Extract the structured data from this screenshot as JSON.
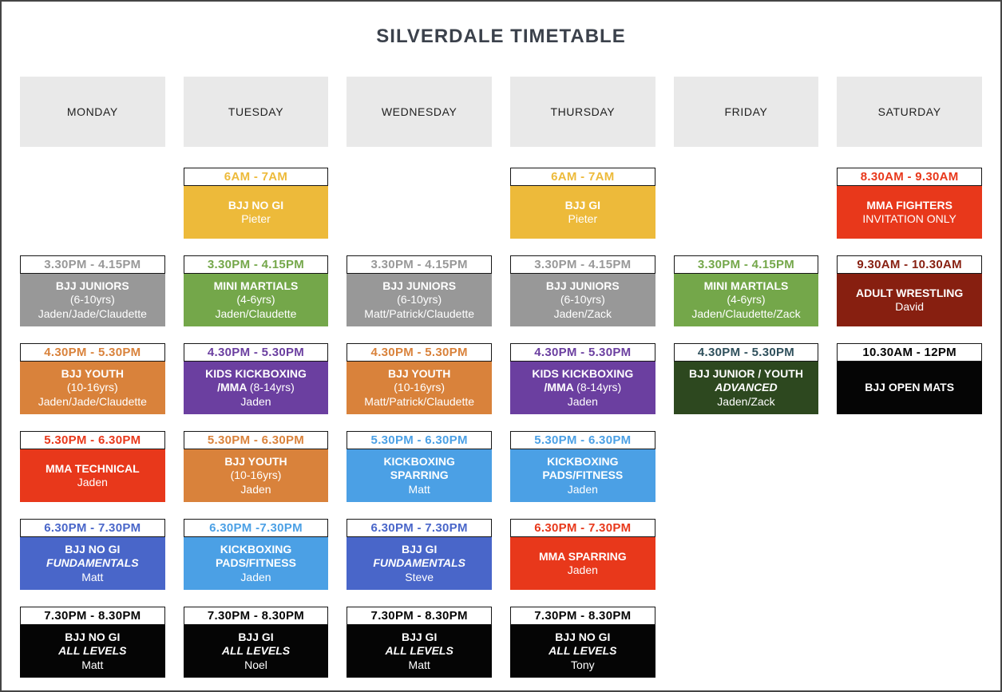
{
  "title": "SILVERDALE TIMETABLE",
  "days": [
    "MONDAY",
    "TUESDAY",
    "WEDNESDAY",
    "THURSDAY",
    "FRIDAY",
    "SATURDAY"
  ],
  "palette": {
    "yellow": "#EDBA3A",
    "gray": "#989898",
    "green": "#74A74A",
    "orange": "#D9823B",
    "purple": "#6B3FA0",
    "red": "#E8381B",
    "dark_red": "#871F10",
    "dark_green": "#2D481F",
    "royal_blue": "#4966C9",
    "light_blue": "#4BA0E5",
    "black": "#050505",
    "title_color": "#3B414B",
    "day_header_bg": "#E9E9E9",
    "time_border": "#161616",
    "page_border": "#454545"
  },
  "schedule": {
    "rows": [
      [
        null,
        {
          "time": "6AM - 7AM",
          "color": "yellow",
          "lines": [
            {
              "text": "BJJ NO GI",
              "bold": true
            },
            {
              "text": "Pieter"
            }
          ]
        },
        null,
        {
          "time": "6AM - 7AM",
          "color": "yellow",
          "lines": [
            {
              "text": "BJJ GI",
              "bold": true
            },
            {
              "text": "Pieter"
            }
          ]
        },
        null,
        {
          "time": "8.30AM - 9.30AM",
          "color": "red",
          "lines": [
            {
              "text": "MMA FIGHTERS",
              "bold": true
            },
            {
              "text": "INVITATION ONLY"
            }
          ]
        }
      ],
      [
        {
          "time": "3.30PM - 4.15PM",
          "color": "gray",
          "lines": [
            {
              "text": "BJJ JUNIORS",
              "bold": true
            },
            {
              "text": "(6-10yrs)"
            },
            {
              "text": "Jaden/Jade/Claudette"
            }
          ]
        },
        {
          "time": "3.30PM - 4.15PM",
          "color": "green",
          "lines": [
            {
              "text": "MINI MARTIALS",
              "bold": true
            },
            {
              "text": "(4-6yrs)"
            },
            {
              "text": "Jaden/Claudette"
            }
          ]
        },
        {
          "time": "3.30PM - 4.15PM",
          "color": "gray",
          "lines": [
            {
              "text": "BJJ JUNIORS",
              "bold": true
            },
            {
              "text": "(6-10yrs)"
            },
            {
              "text": "Matt/Patrick/Claudette"
            }
          ]
        },
        {
          "time": "3.30PM - 4.15PM",
          "color": "gray",
          "lines": [
            {
              "text": "BJJ JUNIORS",
              "bold": true
            },
            {
              "text": "(6-10yrs)"
            },
            {
              "text": "Jaden/Zack"
            }
          ]
        },
        {
          "time": "3.30PM - 4.15PM",
          "color": "green",
          "lines": [
            {
              "text": "MINI MARTIALS",
              "bold": true
            },
            {
              "text": "(4-6yrs)"
            },
            {
              "text": "Jaden/Claudette/Zack"
            }
          ]
        },
        {
          "time": "9.30AM - 10.30AM",
          "color": "dark_red",
          "lines": [
            {
              "text": "ADULT WRESTLING",
              "bold": true
            },
            {
              "text": "David"
            }
          ]
        }
      ],
      [
        {
          "time": "4.30PM - 5.30PM",
          "color": "orange",
          "lines": [
            {
              "text": "BJJ YOUTH",
              "bold": true
            },
            {
              "text": "(10-16yrs)"
            },
            {
              "text": "Jaden/Jade/Claudette"
            }
          ]
        },
        {
          "time": "4.30PM - 5.30PM",
          "color": "purple",
          "lines": [
            {
              "text": "KIDS KICKBOXING",
              "bold": true
            },
            {
              "parts": [
                {
                  "text": "/MMA ",
                  "bold": true
                },
                {
                  "text": "(8-14yrs)"
                }
              ]
            },
            {
              "text": "Jaden"
            }
          ]
        },
        {
          "time": "4.30PM - 5.30PM",
          "color": "orange",
          "lines": [
            {
              "text": "BJJ YOUTH",
              "bold": true
            },
            {
              "text": "(10-16yrs)"
            },
            {
              "text": "Matt/Patrick/Claudette"
            }
          ]
        },
        {
          "time": "4.30PM - 5.30PM",
          "color": "purple",
          "lines": [
            {
              "text": "KIDS KICKBOXING",
              "bold": true
            },
            {
              "parts": [
                {
                  "text": "/MMA ",
                  "bold": true
                },
                {
                  "text": "(8-14yrs)"
                }
              ]
            },
            {
              "text": "Jaden"
            }
          ]
        },
        {
          "time": "4.30PM - 5.30PM",
          "color": "dark_green",
          "time_color": "#2F505C",
          "lines": [
            {
              "text": "BJJ JUNIOR / YOUTH",
              "bold": true
            },
            {
              "text": "ADVANCED",
              "bold": true,
              "italic": true
            },
            {
              "text": "Jaden/Zack"
            }
          ]
        },
        {
          "time": "10.30AM - 12PM",
          "color": "black",
          "lines": [
            {
              "text": "BJJ OPEN MATS",
              "bold": true
            }
          ]
        }
      ],
      [
        {
          "time": "5.30PM - 6.30PM",
          "color": "red",
          "lines": [
            {
              "text": "MMA TECHNICAL",
              "bold": true
            },
            {
              "text": "Jaden"
            }
          ]
        },
        {
          "time": "5.30PM - 6.30PM",
          "color": "orange",
          "lines": [
            {
              "text": "BJJ YOUTH",
              "bold": true
            },
            {
              "text": "(10-16yrs)"
            },
            {
              "text": "Jaden"
            }
          ]
        },
        {
          "time": "5.30PM - 6.30PM",
          "color": "light_blue",
          "lines": [
            {
              "text": "KICKBOXING",
              "bold": true
            },
            {
              "text": "SPARRING",
              "bold": true
            },
            {
              "text": "Matt"
            }
          ]
        },
        {
          "time": "5.30PM - 6.30PM",
          "color": "light_blue",
          "lines": [
            {
              "text": "KICKBOXING",
              "bold": true
            },
            {
              "text": "PADS/FITNESS",
              "bold": true
            },
            {
              "text": "Jaden"
            }
          ]
        },
        null,
        null
      ],
      [
        {
          "time": "6.30PM - 7.30PM",
          "color": "royal_blue",
          "lines": [
            {
              "text": "BJJ NO GI",
              "bold": true
            },
            {
              "text": "FUNDAMENTALS",
              "bold": true,
              "italic": true
            },
            {
              "text": "Matt"
            }
          ]
        },
        {
          "time": "6.30PM -7.30PM",
          "color": "light_blue",
          "lines": [
            {
              "text": "KICKBOXING",
              "bold": true
            },
            {
              "text": "PADS/FITNESS",
              "bold": true
            },
            {
              "text": "Jaden"
            }
          ]
        },
        {
          "time": "6.30PM - 7.30PM",
          "color": "royal_blue",
          "lines": [
            {
              "text": "BJJ GI",
              "bold": true
            },
            {
              "text": "FUNDAMENTALS",
              "bold": true,
              "italic": true
            },
            {
              "text": "Steve"
            }
          ]
        },
        {
          "time": "6.30PM - 7.30PM",
          "color": "red",
          "lines": [
            {
              "text": "MMA SPARRING",
              "bold": true
            },
            {
              "text": "Jaden"
            }
          ]
        },
        null,
        null
      ],
      [
        {
          "time": "7.30PM - 8.30PM",
          "color": "black",
          "lines": [
            {
              "text": "BJJ NO GI",
              "bold": true
            },
            {
              "text": "ALL LEVELS",
              "bold": true,
              "italic": true
            },
            {
              "text": "Matt"
            }
          ]
        },
        {
          "time": "7.30PM - 8.30PM",
          "color": "black",
          "lines": [
            {
              "text": "BJJ GI",
              "bold": true
            },
            {
              "text": "ALL LEVELS",
              "bold": true,
              "italic": true
            },
            {
              "text": "Noel"
            }
          ]
        },
        {
          "time": "7.30PM - 8.30PM",
          "color": "black",
          "lines": [
            {
              "text": "BJJ GI",
              "bold": true
            },
            {
              "text": "ALL LEVELS",
              "bold": true,
              "italic": true
            },
            {
              "text": "Matt"
            }
          ]
        },
        {
          "time": "7.30PM - 8.30PM",
          "color": "black",
          "lines": [
            {
              "text": "BJJ NO GI",
              "bold": true
            },
            {
              "text": "ALL LEVELS",
              "bold": true,
              "italic": true
            },
            {
              "text": "Tony"
            }
          ]
        },
        null,
        null
      ]
    ]
  }
}
